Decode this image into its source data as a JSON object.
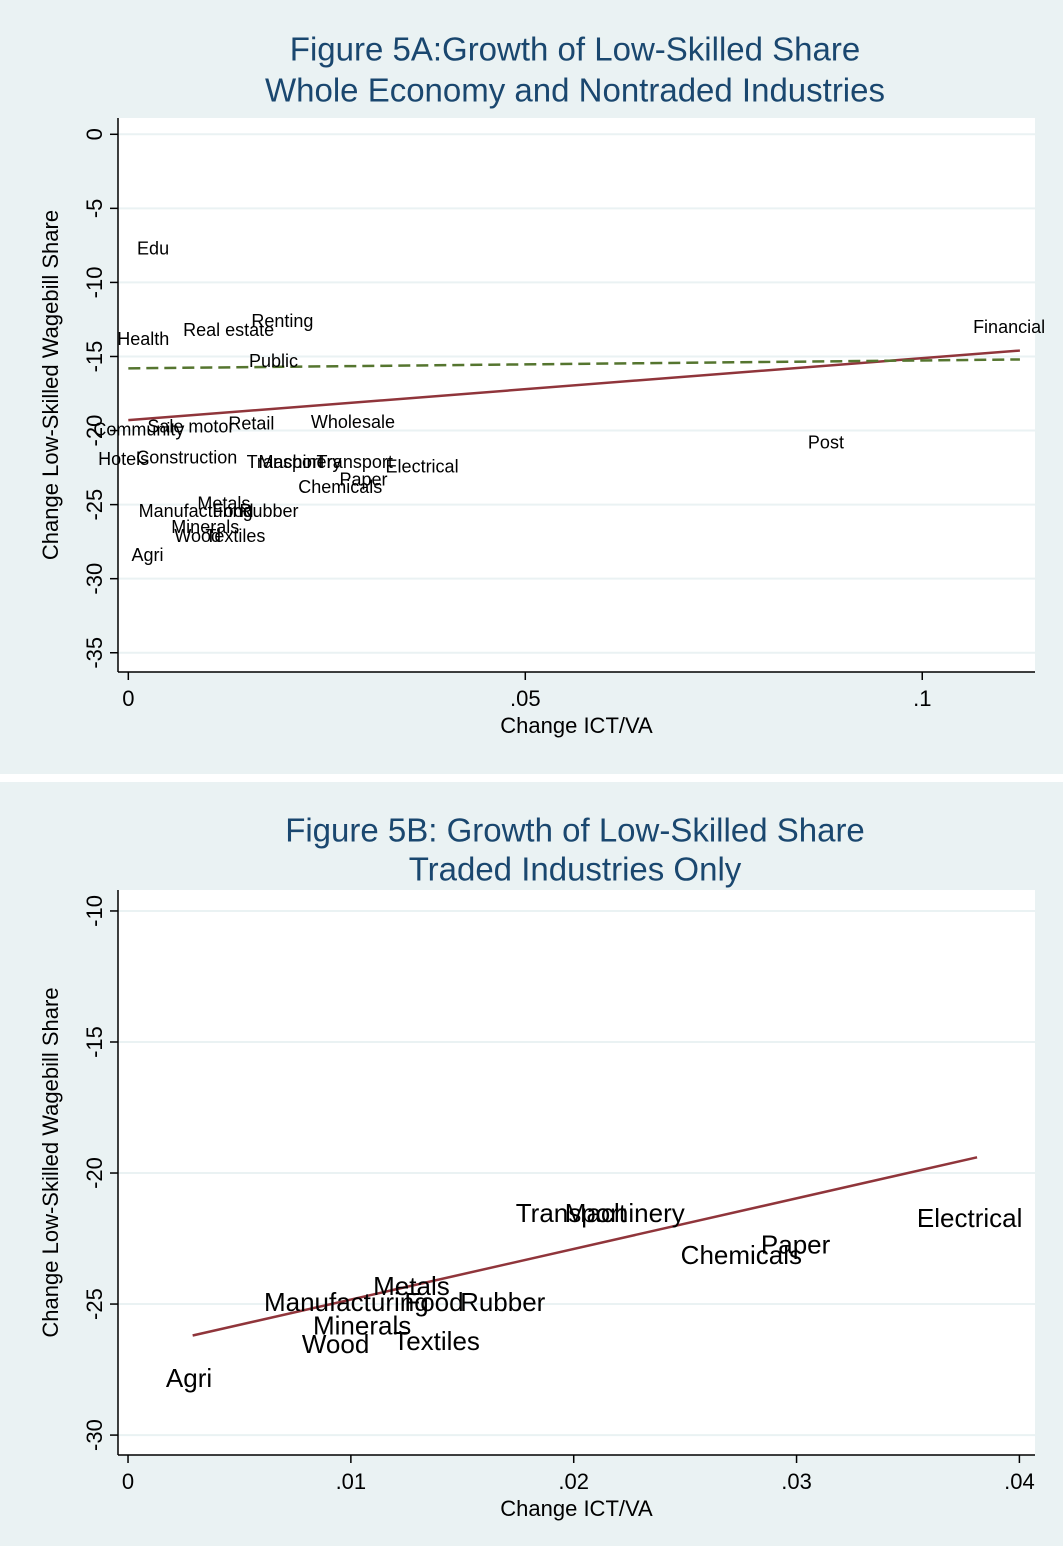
{
  "chart_data": [
    {
      "type": "scatter",
      "title": [
        "Figure 5A:Growth of Low-Skilled Share",
        "Whole Economy and Nontraded Industries"
      ],
      "x_label": "Change ICT/VA",
      "y_label": "Change Low-Skilled Wagebill Share",
      "labels": [
        "Edu",
        "Health",
        "Real estate",
        "Renting",
        "Public",
        "Financial",
        "Community",
        "Sale motor",
        "Retail",
        "Wholesale",
        "Post",
        "Hotels",
        "Construction",
        "Transport",
        "Machinery",
        "Transport",
        "Electrical",
        "Paper",
        "Chemicals",
        "Metals",
        "Food",
        "Rubber",
        "Manufacturing",
        "Minerals",
        "Wood",
        "Textiles",
        "Agri"
      ],
      "x": [
        0.0011,
        -0.0014,
        0.0069,
        0.0155,
        0.0152,
        0.1064,
        -0.0044,
        0.0024,
        0.0126,
        0.023,
        0.0856,
        -0.0038,
        0.001,
        0.0149,
        0.0164,
        0.0237,
        0.0324,
        0.0266,
        0.0214,
        0.0087,
        0.0106,
        0.014,
        0.0013,
        0.0054,
        0.0058,
        0.0097,
        0.0004
      ],
      "values": [
        -7.8,
        -13.9,
        -13.3,
        -12.7,
        -15.4,
        -13.1,
        -20.0,
        -19.8,
        -19.6,
        -19.5,
        -20.9,
        -22.0,
        -21.9,
        -22.2,
        -22.2,
        -22.2,
        -22.5,
        -23.4,
        -23.9,
        -25.0,
        -25.5,
        -25.5,
        -25.5,
        -26.6,
        -27.2,
        -27.2,
        -28.5
      ],
      "lines": [
        {
          "color": "#90353b",
          "dash": false,
          "x": [
            0,
            0.1123
          ],
          "values": [
            -19.3,
            -14.6
          ]
        },
        {
          "color": "#55752f",
          "dash": true,
          "x": [
            0,
            0.1123
          ],
          "values": [
            -15.8,
            -15.2
          ]
        }
      ],
      "color": "#000000",
      "xlim": [
        -0.0013,
        0.1142
      ],
      "ylim": [
        -36.3,
        1.1
      ],
      "xticks": [
        0,
        {
          "value": 0.05,
          "label": ".05"
        },
        {
          "value": 0.1,
          "label": ".1"
        }
      ],
      "yticks": [
        0,
        -5,
        -10,
        -15,
        -20,
        -25,
        -30,
        -35
      ],
      "grid": true
    },
    {
      "type": "scatter",
      "title": [
        "Figure 5B: Growth of Low-Skilled Share",
        "Traded Industries Only"
      ],
      "x_label": "Change ICT/VA",
      "y_label": "Change Low-Skilled Wagebill Share",
      "labels": [
        "Agri",
        "Wood",
        "Textiles",
        "Minerals",
        "Manufacturing",
        "Metals",
        "Food",
        "Rubber",
        "Transport",
        "Machinery",
        "Chemicals",
        "Paper",
        "Electrical"
      ],
      "x": [
        0.0017,
        0.0078,
        0.0119,
        0.0083,
        0.0061,
        0.011,
        0.0124,
        0.0149,
        0.0174,
        0.0196,
        0.0248,
        0.0284,
        0.0354
      ],
      "values": [
        -27.9,
        -26.6,
        -26.5,
        -25.9,
        -25.0,
        -24.4,
        -25.0,
        -25.0,
        -21.6,
        -21.6,
        -23.2,
        -22.8,
        -21.8
      ],
      "lines": [
        {
          "color": "#90353b",
          "dash": false,
          "x": [
            0.0029,
            0.0381
          ],
          "values": [
            -26.2,
            -19.4
          ]
        }
      ],
      "color": "#000000",
      "xlim": [
        -0.00045,
        0.0407
      ],
      "ylim": [
        -30.76,
        -9.2
      ],
      "xticks": [
        0,
        {
          "value": 0.01,
          "label": ".01"
        },
        {
          "value": 0.02,
          "label": ".02"
        },
        {
          "value": 0.03,
          "label": ".03"
        },
        {
          "value": 0.04,
          "label": ".04"
        }
      ],
      "yticks": [
        -10,
        -15,
        -20,
        -25,
        -30
      ],
      "grid": true
    }
  ]
}
